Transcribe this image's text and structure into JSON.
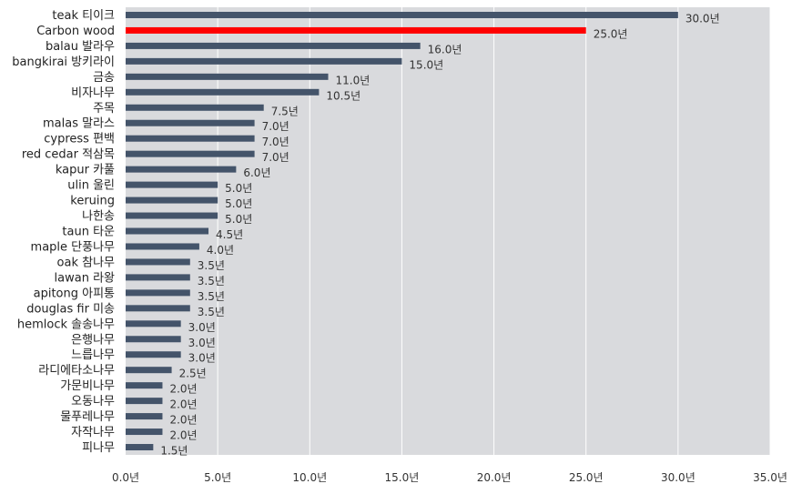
{
  "chart_data": {
    "type": "bar",
    "orientation": "horizontal",
    "title": "",
    "xlabel": "",
    "ylabel": "",
    "xlim": [
      0,
      35
    ],
    "value_suffix": "년",
    "x_ticks": [
      "0.0년",
      "5.0년",
      "10.0년",
      "15.0년",
      "20.0년",
      "25.0년",
      "30.0년",
      "35.0년"
    ],
    "categories": [
      "teak 티이크",
      "Carbon wood",
      "balau 발라우",
      "bangkirai 방키라이",
      "금송",
      "비자나무",
      "주목",
      "malas 말라스",
      "cypress 편백",
      "red cedar 적삼목",
      "kapur 카풀",
      "ulin 울린",
      "keruing",
      "나한송",
      "taun 타운",
      "maple 단풍나무",
      "oak 참나무",
      "lawan 라왕",
      "apitong 아피통",
      "douglas fir 미송",
      "hemlock 솔송나무",
      "은행나무",
      "느릅나무",
      "라디에타소나무",
      "가문비나무",
      "오동나무",
      "물푸레나무",
      "자작나무",
      "피나무"
    ],
    "values": [
      30.0,
      25.0,
      16.0,
      15.0,
      11.0,
      10.5,
      7.5,
      7.0,
      7.0,
      7.0,
      6.0,
      5.0,
      5.0,
      5.0,
      4.5,
      4.0,
      3.5,
      3.5,
      3.5,
      3.5,
      3.0,
      3.0,
      3.0,
      2.5,
      2.0,
      2.0,
      2.0,
      2.0,
      1.5
    ],
    "value_labels": [
      "30.0년",
      "25.0년",
      "16.0년",
      "15.0년",
      "11.0년",
      "10.5년",
      "7.5년",
      "7.0년",
      "7.0년",
      "7.0년",
      "6.0년",
      "5.0년",
      "5.0년",
      "5.0년",
      "4.5년",
      "4.0년",
      "3.5년",
      "3.5년",
      "3.5년",
      "3.5년",
      "3.0년",
      "3.0년",
      "3.0년",
      "2.5년",
      "2.0년",
      "2.0년",
      "2.0년",
      "2.0년",
      "1.5년"
    ],
    "highlight_index": 1,
    "grid": true,
    "colors": {
      "bar": "#44546a",
      "highlight_bar": "#ff0000",
      "highlight_text": "#ff0000",
      "plot_background": "#d9dadd",
      "gridline": "#ffffff"
    }
  }
}
